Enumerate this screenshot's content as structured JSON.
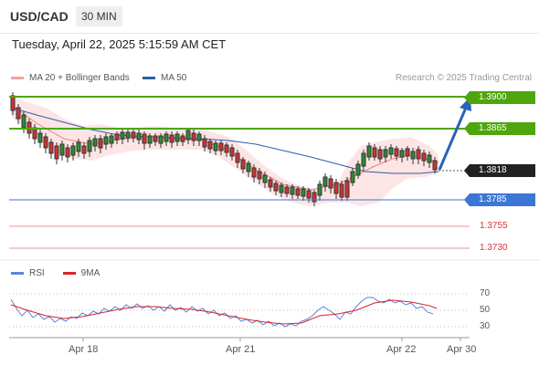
{
  "header": {
    "symbol": "USD/CAD",
    "timeframe": "30 MIN",
    "datetime": "Tuesday, April 22, 2025 5:15:59 AM CET"
  },
  "legend": {
    "ma20_label": "MA 20 + Bollinger Bands",
    "ma50_label": "MA 50",
    "credit": "Research © 2025 Trading Central",
    "colors": {
      "ma20": "#f08080",
      "ma50": "#2e5fa8"
    }
  },
  "levels": {
    "r2": "1.3900",
    "r1": "1.3865",
    "current": "1.3818",
    "s1": "1.3785",
    "s2": "1.3755",
    "s3": "1.3730"
  },
  "rsi": {
    "rsi_label": "RSI",
    "ma_label": "9MA",
    "colors": {
      "rsi": "#5b86d8",
      "ma": "#d6262b"
    },
    "ticks": [
      "70",
      "50",
      "30"
    ]
  },
  "xaxis": {
    "labels": [
      "Apr 18",
      "Apr 21",
      "Apr 22",
      "Apr 30"
    ]
  },
  "colors": {
    "up": "#2e8b2e",
    "down": "#d13232",
    "resistance": "#4ea60c",
    "support": "#3b76d6",
    "target": "#d23a3a",
    "arrow": "#2a63b8"
  }
}
